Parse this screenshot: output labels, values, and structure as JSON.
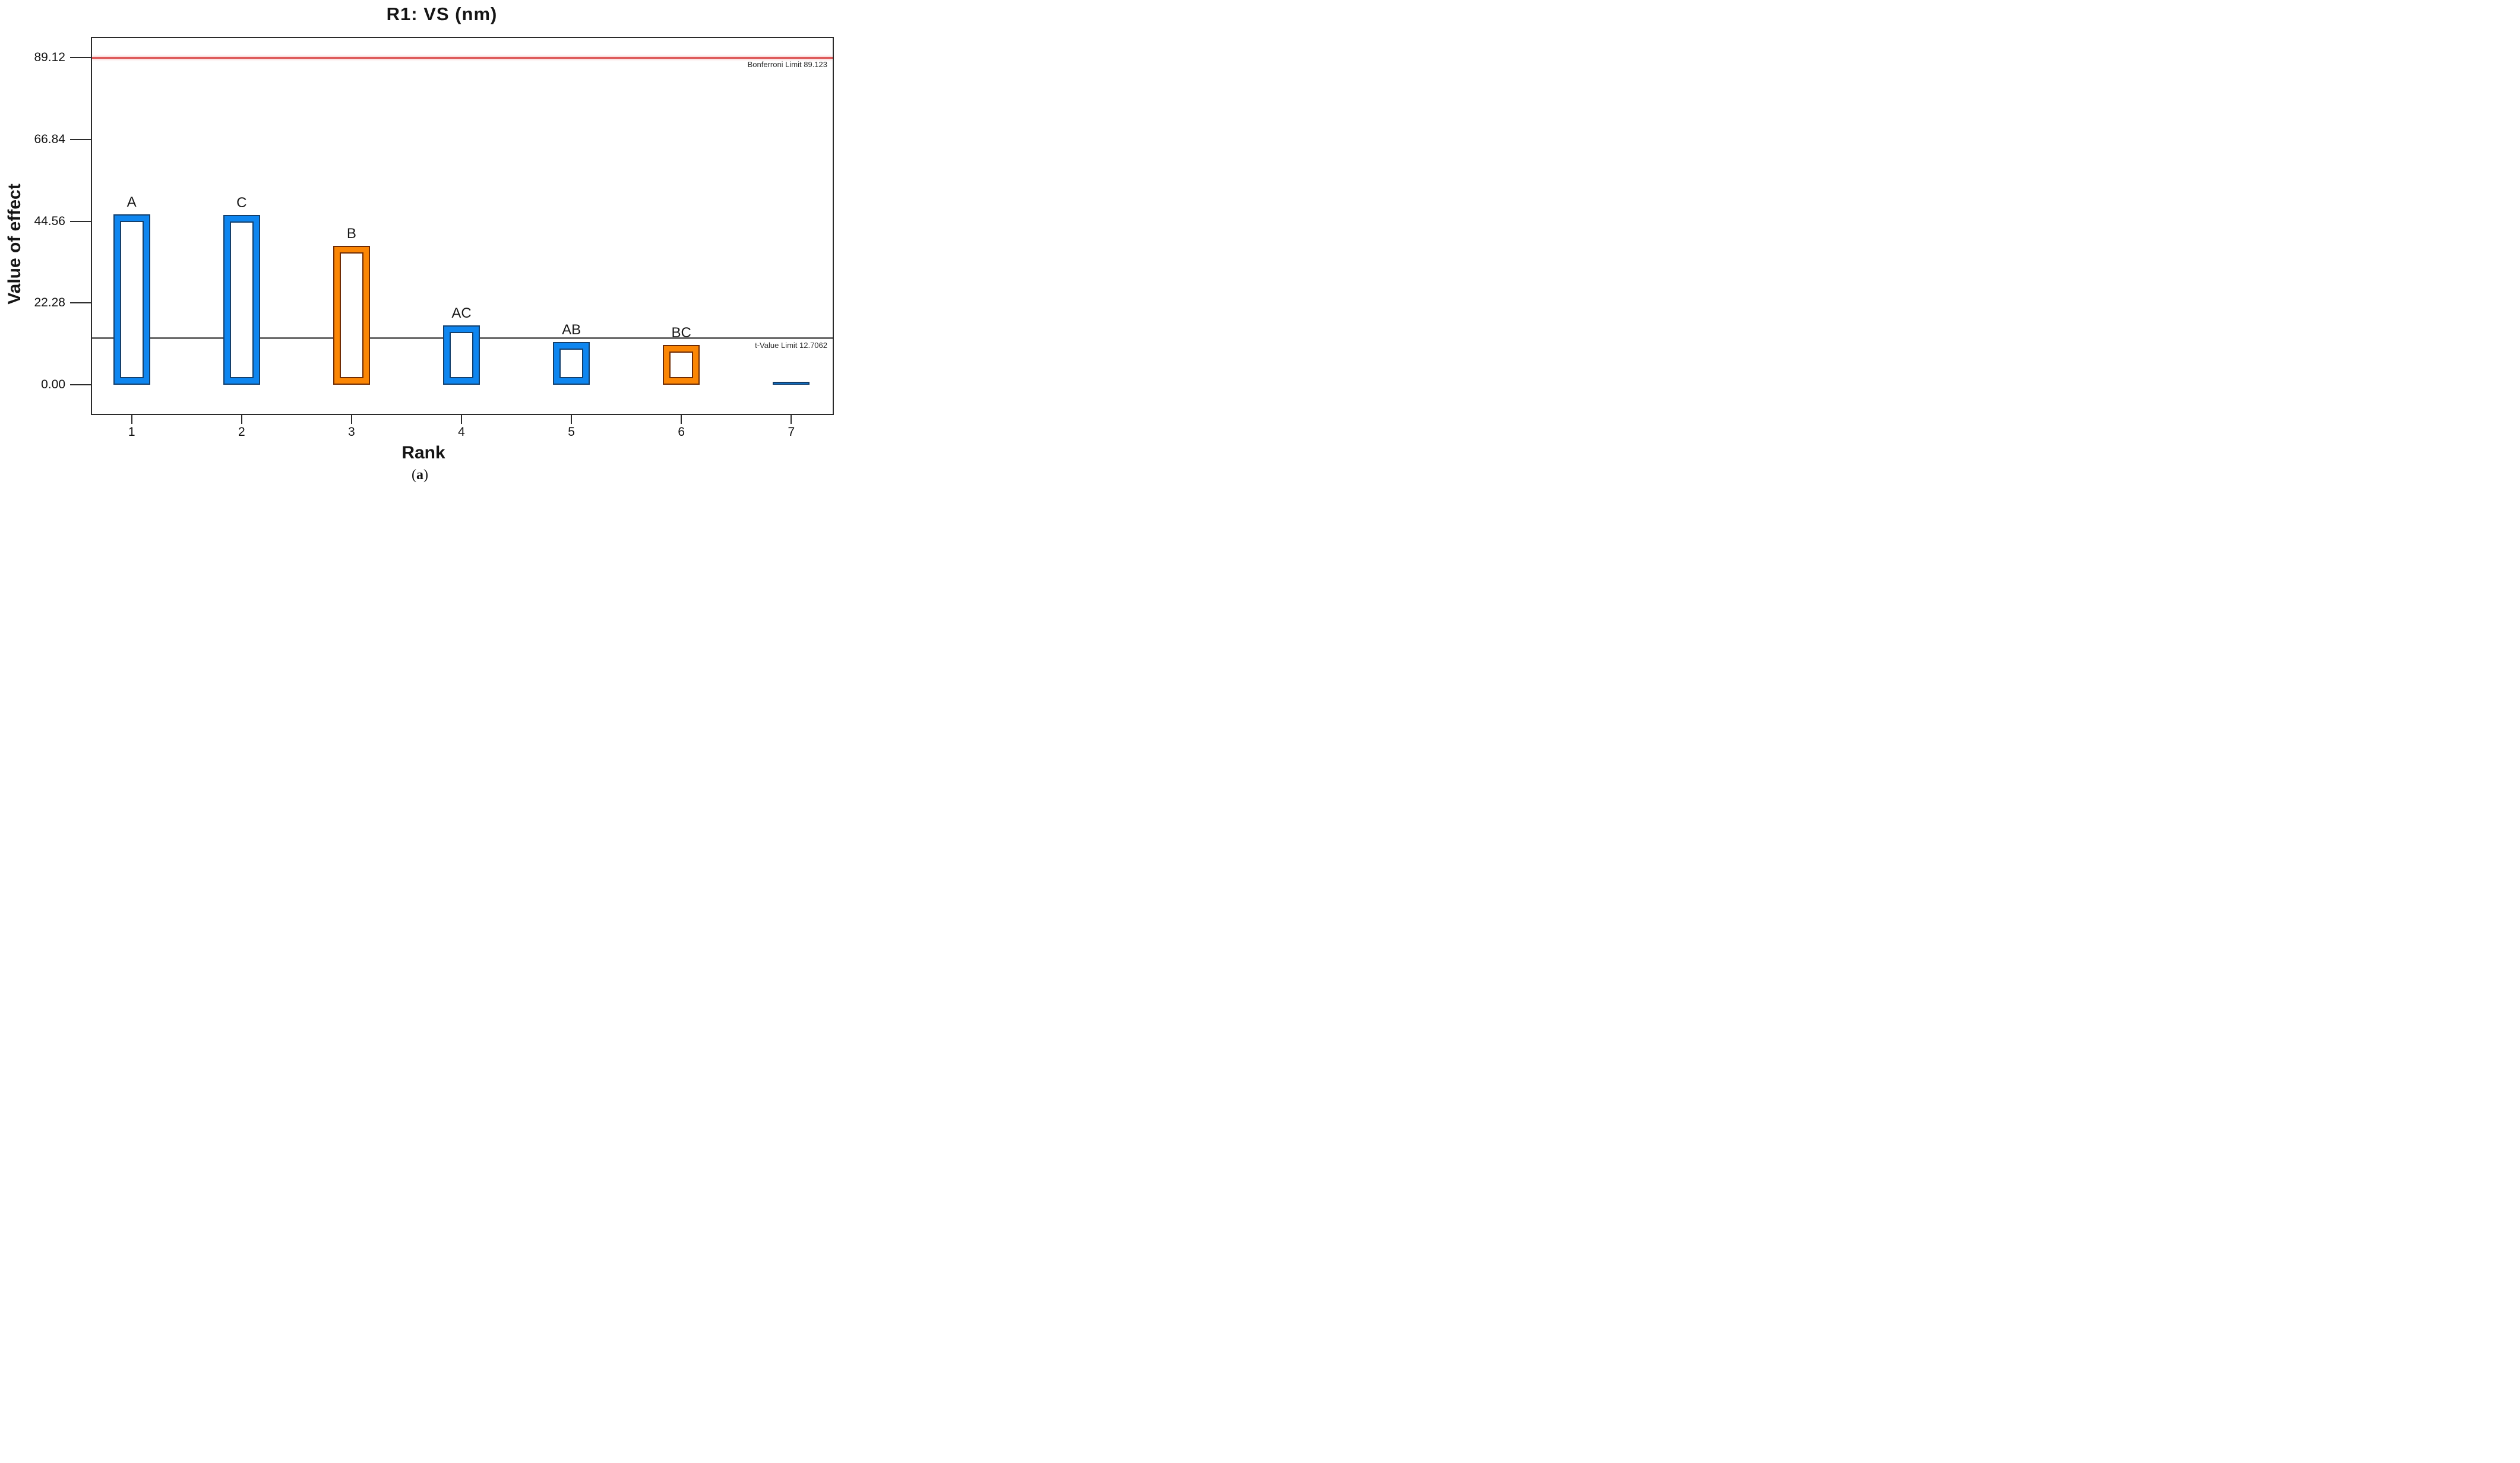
{
  "figure": {
    "title": "R1: VS (nm)",
    "caption": {
      "open": "(",
      "letter": "a",
      "close": ")"
    }
  },
  "chart_data": {
    "type": "bar",
    "title": "R1: VS (nm)",
    "xlabel": "Rank",
    "ylabel": "Value of effect",
    "bar_style": "hollow-outline",
    "grid": false,
    "legend": "none",
    "categories": [
      "1",
      "2",
      "3",
      "4",
      "5",
      "6",
      "7"
    ],
    "bars": [
      {
        "rank": "1",
        "label": "A",
        "effect": 46.5,
        "color": "blue",
        "hollow": true
      },
      {
        "rank": "2",
        "label": "C",
        "effect": 46.3,
        "color": "blue",
        "hollow": true
      },
      {
        "rank": "3",
        "label": "B",
        "effect": 37.8,
        "color": "orange",
        "hollow": true
      },
      {
        "rank": "4",
        "label": "AC",
        "effect": 16.2,
        "color": "blue",
        "hollow": true
      },
      {
        "rank": "5",
        "label": "AB",
        "effect": 11.6,
        "color": "blue",
        "hollow": true
      },
      {
        "rank": "6",
        "label": "BC",
        "effect": 10.9,
        "color": "orange",
        "hollow": true
      },
      {
        "rank": "7",
        "label": "",
        "effect": 0.8,
        "color": "blue",
        "hollow": false
      }
    ],
    "yticks": [
      {
        "label": "0.00",
        "value": 0
      },
      {
        "label": "22.28",
        "value": 22.28
      },
      {
        "label": "44.56",
        "value": 44.56
      },
      {
        "label": "66.84",
        "value": 66.84
      },
      {
        "label": "89.12",
        "value": 89.12
      }
    ],
    "ylim": [
      -7.5,
      94.5
    ],
    "reference_lines": [
      {
        "label": "Bonferroni Limit 89.123",
        "value": 89.123,
        "color": "#dd5a5a"
      },
      {
        "label": "t-Value Limit 12.7062",
        "value": 12.7062,
        "color": "#6a6a6a"
      }
    ],
    "colors": {
      "blue": {
        "fill": "#0e86f0",
        "border": "#143f6b"
      },
      "orange": {
        "fill": "#fb8604",
        "border": "#6e2b05"
      },
      "frame": "#2b2b2b",
      "bonferroni_line": "#dd5a5a",
      "t_value_line": "#6a6a6a"
    }
  }
}
